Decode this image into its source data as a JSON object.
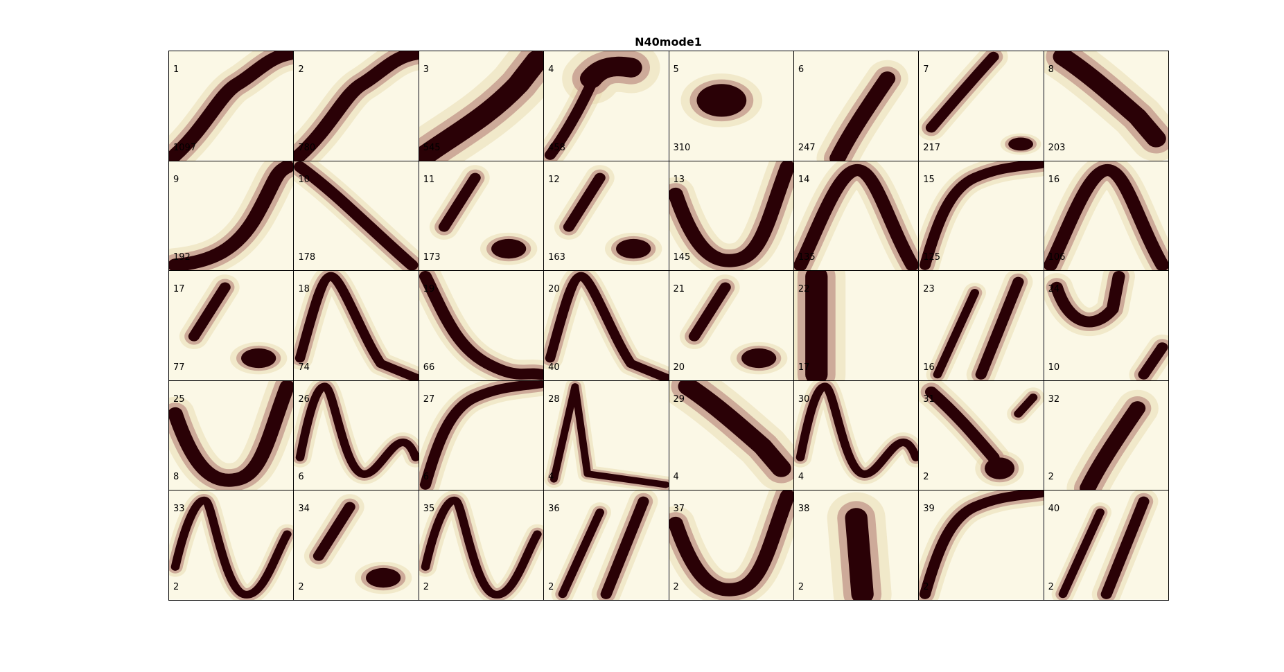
{
  "figure": {
    "title": "N40mode1"
  },
  "colors": {
    "background": "#fbf8e6",
    "light": "#e9dcb3",
    "mid": "#c49a8c",
    "dark": "#2a0106"
  },
  "chart_data": {
    "type": "heatmap",
    "title": "N40mode1",
    "grid": {
      "rows": 5,
      "cols": 8
    },
    "panels": [
      {
        "id": "1",
        "count": "1097",
        "shape": "rising-S"
      },
      {
        "id": "2",
        "count": "780",
        "shape": "rising-S"
      },
      {
        "id": "3",
        "count": "545",
        "shape": "rising-broad"
      },
      {
        "id": "4",
        "count": "458",
        "shape": "rising-with-top-blob"
      },
      {
        "id": "5",
        "count": "310",
        "shape": "central-blob"
      },
      {
        "id": "6",
        "count": "247",
        "shape": "rising-short"
      },
      {
        "id": "7",
        "count": "217",
        "shape": "rising-plus-low-blob"
      },
      {
        "id": "8",
        "count": "203",
        "shape": "falling-broad"
      },
      {
        "id": "9",
        "count": "192",
        "shape": "rising-curve"
      },
      {
        "id": "10",
        "count": "178",
        "shape": "falling"
      },
      {
        "id": "11",
        "count": "173",
        "shape": "two-blobs"
      },
      {
        "id": "12",
        "count": "163",
        "shape": "two-blobs"
      },
      {
        "id": "13",
        "count": "145",
        "shape": "u-shape"
      },
      {
        "id": "14",
        "count": "135",
        "shape": "inverted-v"
      },
      {
        "id": "15",
        "count": "125",
        "shape": "rising-arc"
      },
      {
        "id": "16",
        "count": "106",
        "shape": "inverted-v"
      },
      {
        "id": "17",
        "count": "77",
        "shape": "two-blobs"
      },
      {
        "id": "18",
        "count": "74",
        "shape": "peak-then-fall"
      },
      {
        "id": "19",
        "count": "66",
        "shape": "falling-curve"
      },
      {
        "id": "20",
        "count": "40",
        "shape": "peak-then-fall"
      },
      {
        "id": "21",
        "count": "20",
        "shape": "two-blobs"
      },
      {
        "id": "22",
        "count": "17",
        "shape": "vertical-band"
      },
      {
        "id": "23",
        "count": "16",
        "shape": "rising-streaks"
      },
      {
        "id": "24",
        "count": "10",
        "shape": "u-plus-blob"
      },
      {
        "id": "25",
        "count": "8",
        "shape": "u-shape"
      },
      {
        "id": "26",
        "count": "6",
        "shape": "n-wave"
      },
      {
        "id": "27",
        "count": "6",
        "shape": "rising-arc"
      },
      {
        "id": "28",
        "count": "4",
        "shape": "spike"
      },
      {
        "id": "29",
        "count": "4",
        "shape": "falling-broad"
      },
      {
        "id": "30",
        "count": "4",
        "shape": "n-wave"
      },
      {
        "id": "31",
        "count": "2",
        "shape": "falling-with-blob"
      },
      {
        "id": "32",
        "count": "2",
        "shape": "rising-short"
      },
      {
        "id": "33",
        "count": "2",
        "shape": "v-wave"
      },
      {
        "id": "34",
        "count": "2",
        "shape": "two-blobs"
      },
      {
        "id": "35",
        "count": "2",
        "shape": "v-wave"
      },
      {
        "id": "36",
        "count": "2",
        "shape": "rising-streaks"
      },
      {
        "id": "37",
        "count": "2",
        "shape": "u-shape"
      },
      {
        "id": "38",
        "count": "2",
        "shape": "central-vertical-blob"
      },
      {
        "id": "39",
        "count": "2",
        "shape": "rising-arc"
      },
      {
        "id": "40",
        "count": "2",
        "shape": "rising-streaks"
      }
    ]
  }
}
